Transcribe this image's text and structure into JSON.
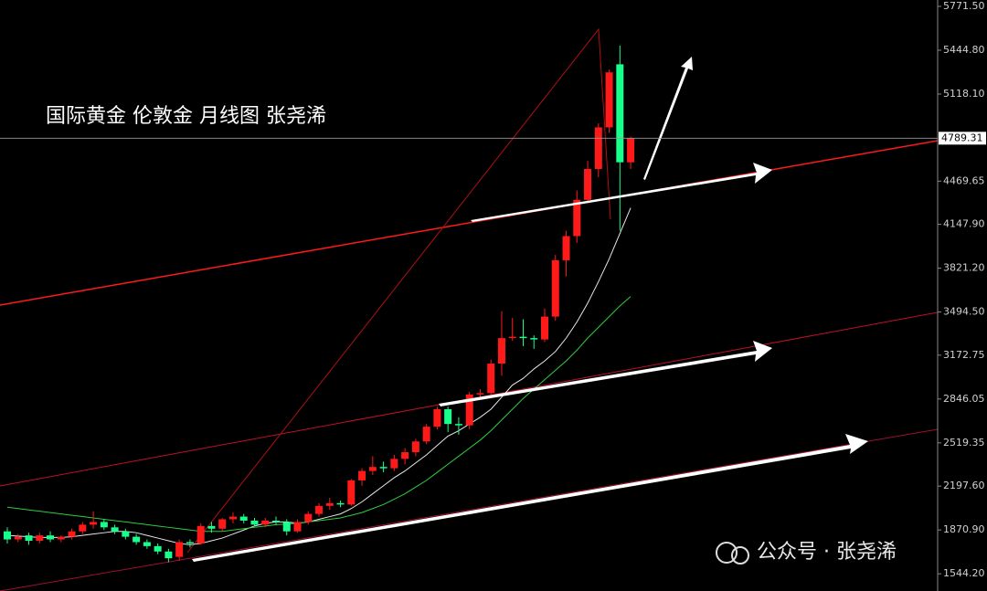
{
  "chart_data": {
    "type": "candlestick",
    "title": "国际黄金 伦敦金 月线图 张尧浠",
    "watermark": "公众号 · 张尧浠",
    "up_color": "#ff1a1a",
    "down_color": "#19ff8c",
    "open": [
      1860,
      1800,
      1830,
      1790,
      1830,
      1800,
      1820,
      1860,
      1910,
      1930,
      1890,
      1860,
      1820,
      1780,
      1750,
      1710,
      1670,
      1780,
      1770,
      1900,
      1880,
      1950,
      1970,
      1940,
      1910,
      1940,
      1930,
      1860,
      1930,
      1990,
      2050,
      2070,
      2060,
      2240,
      2310,
      2340,
      2330,
      2400,
      2450,
      2530,
      2640,
      2770,
      2660,
      2650,
      2880,
      2890,
      3110,
      3300,
      3310,
      3300,
      3290,
      3460,
      3880,
      4060,
      4330,
      4560,
      4870,
      5340,
      4610
    ],
    "high": [
      1890,
      1840,
      1850,
      1850,
      1860,
      1830,
      1880,
      1930,
      2010,
      1950,
      1910,
      1880,
      1840,
      1800,
      1770,
      1730,
      1800,
      1800,
      1920,
      1930,
      1960,
      2000,
      1990,
      1960,
      1960,
      1970,
      1950,
      1950,
      2010,
      2070,
      2110,
      2090,
      2250,
      2330,
      2420,
      2380,
      2430,
      2480,
      2550,
      2660,
      2790,
      2790,
      2710,
      2900,
      2920,
      3140,
      3500,
      3450,
      3440,
      3320,
      3520,
      3920,
      4100,
      4400,
      4620,
      4900,
      5300,
      5480,
      4800
    ],
    "low": [
      1770,
      1780,
      1760,
      1770,
      1780,
      1780,
      1800,
      1840,
      1880,
      1870,
      1840,
      1800,
      1760,
      1730,
      1690,
      1630,
      1640,
      1740,
      1760,
      1850,
      1860,
      1920,
      1920,
      1900,
      1890,
      1910,
      1830,
      1850,
      1910,
      1970,
      2020,
      2040,
      2050,
      2200,
      2280,
      2300,
      2310,
      2360,
      2420,
      2510,
      2620,
      2600,
      2580,
      2620,
      2840,
      2860,
      3020,
      3280,
      3240,
      3220,
      3270,
      3430,
      3760,
      4010,
      4310,
      4500,
      4830,
      4100,
      4560
    ],
    "close": [
      1800,
      1820,
      1790,
      1830,
      1800,
      1820,
      1860,
      1910,
      1930,
      1890,
      1860,
      1820,
      1780,
      1750,
      1710,
      1660,
      1780,
      1770,
      1900,
      1880,
      1950,
      1970,
      1940,
      1910,
      1940,
      1930,
      1860,
      1930,
      1990,
      2050,
      2070,
      2060,
      2240,
      2310,
      2340,
      2330,
      2400,
      2450,
      2530,
      2640,
      2770,
      2660,
      2650,
      2880,
      2890,
      3110,
      3300,
      3310,
      3300,
      3290,
      3460,
      3880,
      4060,
      4330,
      4560,
      4870,
      5280,
      4610,
      4789.31
    ],
    "series": [
      {
        "color": "#e8e8e8",
        "values": [
          1830,
          1825,
          1820,
          1815,
          1815,
          1815,
          1820,
          1830,
          1840,
          1850,
          1860,
          1860,
          1850,
          1830,
          1810,
          1790,
          1770,
          1760,
          1770,
          1790,
          1810,
          1840,
          1870,
          1900,
          1920,
          1930,
          1930,
          1920,
          1930,
          1950,
          1970,
          1990,
          2030,
          2080,
          2140,
          2200,
          2260,
          2310,
          2370,
          2430,
          2500,
          2570,
          2610,
          2660,
          2710,
          2770,
          2860,
          2950,
          3000,
          3070,
          3130,
          3200,
          3300,
          3420,
          3560,
          3720,
          3890,
          4080,
          4270
        ]
      },
      {
        "color": "#2ecc40",
        "values": [
          2040,
          2030,
          2020,
          2010,
          2000,
          1990,
          1980,
          1970,
          1960,
          1950,
          1940,
          1930,
          1920,
          1910,
          1900,
          1890,
          1880,
          1870,
          1860,
          1860,
          1860,
          1870,
          1880,
          1890,
          1900,
          1910,
          1915,
          1920,
          1930,
          1940,
          1950,
          1960,
          1980,
          2000,
          2030,
          2060,
          2100,
          2140,
          2190,
          2240,
          2300,
          2360,
          2420,
          2480,
          2540,
          2610,
          2690,
          2770,
          2850,
          2920,
          2990,
          3060,
          3130,
          3210,
          3300,
          3380,
          3460,
          3540,
          3610
        ]
      }
    ],
    "last_price": 4789.31,
    "ylim": [
      1415.7,
      5819.1
    ],
    "yticks": [
      {
        "value": 5771.5,
        "label": "5771.50"
      },
      {
        "value": 5444.8,
        "label": "5444.80"
      },
      {
        "value": 5118.1,
        "label": "5118.10"
      },
      {
        "value": 4469.65,
        "label": "4469.65"
      },
      {
        "value": 4147.9,
        "label": "4147.90"
      },
      {
        "value": 3821.2,
        "label": "3821.20"
      },
      {
        "value": 3494.5,
        "label": "3494.50"
      },
      {
        "value": 3172.75,
        "label": "3172.75"
      },
      {
        "value": 2846.05,
        "label": "2846.05"
      },
      {
        "value": 2519.35,
        "label": "2519.35"
      },
      {
        "value": 2197.6,
        "label": "2197.60"
      },
      {
        "value": 1870.9,
        "label": "1870.90"
      },
      {
        "value": 1544.2,
        "label": "1544.20"
      }
    ]
  }
}
